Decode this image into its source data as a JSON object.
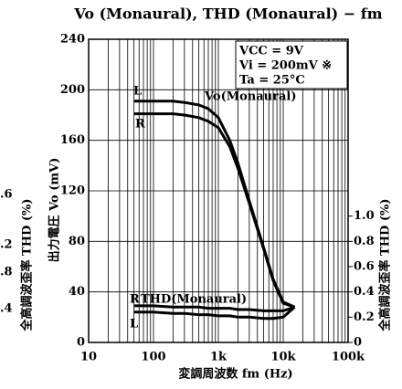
{
  "chart_data": {
    "type": "line",
    "title": "Vo (Monaural), THD (Monaural) − fm",
    "x_label": "変調周波数 fm (Hz)",
    "y_label": "出力電圧 Vo (mV)",
    "y2_label": "全高調波歪率 THD (%)",
    "neighbor_label": "全高調波歪率 THD (%)",
    "neighbor_ticks": [
      ".6",
      ".2",
      ".8",
      ".4"
    ],
    "conditions": [
      "VCC = 9V",
      "Vi = 200mV ※",
      "Ta = 25°C"
    ],
    "annotations": [
      "L",
      "R",
      "Vo(Monaural)",
      "R",
      "THD(Monaural)",
      "L"
    ],
    "log_x": true,
    "grid": true,
    "xlim": [
      10,
      100000
    ],
    "xticks": [
      10,
      100,
      {
        "value": 1000,
        "label": "1k"
      },
      {
        "value": 10000,
        "label": "10k"
      },
      {
        "value": 100000,
        "label": "100k"
      }
    ],
    "ylim": [
      0,
      240
    ],
    "yticks": [
      0,
      40,
      80,
      120,
      160,
      200,
      240
    ],
    "y2lim": [
      0,
      2.4
    ],
    "y2ticks": [
      0,
      0.2,
      0.4,
      0.6,
      0.8,
      {
        "value": 1,
        "label": "1.0"
      }
    ],
    "x": [
      50,
      100,
      200,
      300,
      500,
      700,
      1000,
      1500,
      2000,
      3000,
      5000,
      7000,
      10000,
      15000
    ],
    "series": [
      {
        "name": "Vo L",
        "color": "#000000",
        "values": [
          191,
          191,
          191,
          190,
          188,
          185,
          178,
          160,
          142,
          112,
          75,
          50,
          32,
          28
        ]
      },
      {
        "name": "Vo R",
        "color": "#000000",
        "values": [
          181,
          181,
          181,
          180,
          178,
          175,
          170,
          155,
          138,
          110,
          74,
          49,
          31,
          28
        ]
      },
      {
        "name": "THD L",
        "color": "#000000",
        "axis": "y2",
        "values": [
          0.24,
          0.24,
          0.23,
          0.23,
          0.22,
          0.22,
          0.21,
          0.21,
          0.2,
          0.2,
          0.19,
          0.19,
          0.2,
          0.28
        ]
      },
      {
        "name": "THD R",
        "color": "#000000",
        "axis": "y2",
        "values": [
          0.29,
          0.29,
          0.28,
          0.28,
          0.28,
          0.27,
          0.27,
          0.27,
          0.26,
          0.26,
          0.25,
          0.25,
          0.25,
          0.28
        ]
      }
    ]
  }
}
